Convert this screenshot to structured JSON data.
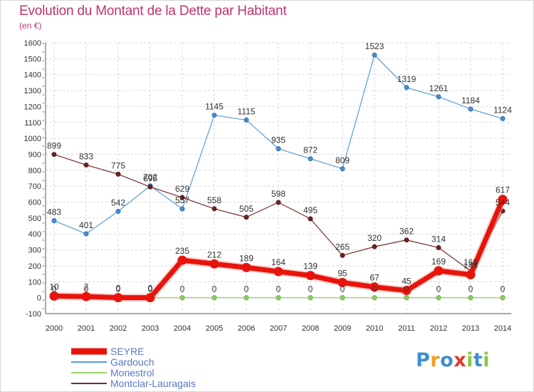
{
  "title": "Evolution du Montant de la Dette par Habitant",
  "subtitle": "(en €)",
  "logo": [
    "P",
    "r",
    "o",
    "x",
    "i",
    "t",
    "i"
  ],
  "logo_colors": [
    "#3f8fd2",
    "#f29c1f",
    "#3f8fd2",
    "#e5392f",
    "#8cc63f",
    "#3f8fd2",
    "#8cc63f"
  ],
  "chart_data": {
    "type": "line",
    "title": "Evolution du Montant de la Dette par Habitant",
    "xlabel": "",
    "ylabel": "(en €)",
    "x": [
      2000,
      2001,
      2002,
      2003,
      2004,
      2005,
      2006,
      2007,
      2008,
      2009,
      2010,
      2011,
      2012,
      2013,
      2014
    ],
    "ylim": [
      -100,
      1600
    ],
    "yticks": [
      -100,
      0,
      100,
      200,
      300,
      400,
      500,
      600,
      700,
      800,
      900,
      1000,
      1100,
      1200,
      1300,
      1400,
      1500,
      1600
    ],
    "grid": true,
    "legend": "bottom-left",
    "series": [
      {
        "name": "SEYRE",
        "color": "#e8140c",
        "values": [
          10,
          7,
          0,
          0,
          235,
          212,
          189,
          164,
          139,
          95,
          67,
          45,
          169,
          144,
          617
        ]
      },
      {
        "name": "Gardouch",
        "color": "#5e9cd3",
        "values": [
          483,
          401,
          542,
          702,
          557,
          1145,
          1115,
          935,
          872,
          809,
          1523,
          1319,
          1261,
          1184,
          1124
        ]
      },
      {
        "name": "Monestrol",
        "color": "#9ad46a",
        "values": [
          0,
          0,
          0,
          0,
          0,
          0,
          0,
          0,
          0,
          0,
          0,
          0,
          0,
          0,
          0
        ]
      },
      {
        "name": "Montclar-Lauragais",
        "color": "#7a2a2a",
        "values": [
          899,
          833,
          775,
          695,
          629,
          558,
          505,
          598,
          495,
          265,
          320,
          362,
          314,
          168,
          544
        ]
      }
    ],
    "data_labels": [
      {
        "series": "SEYRE",
        "labels": [
          "10",
          "7",
          "0",
          "0",
          "235",
          "212",
          "189",
          "164",
          "139",
          "95",
          "67",
          "45",
          "169",
          "144",
          "617"
        ]
      },
      {
        "series": "Gardouch",
        "labels": [
          "483",
          "401",
          "542",
          "702",
          "557",
          "1145",
          "1115",
          "935",
          "872",
          "809",
          "1523",
          "1319",
          "1261",
          "1184",
          "1124"
        ]
      },
      {
        "series": "Monestrol",
        "labels": [
          "0",
          "0",
          "0",
          "0",
          "0",
          "0",
          "0",
          "0",
          "0",
          "0",
          "0",
          "0",
          "0",
          "0",
          "0"
        ]
      },
      {
        "series": "Montclar-Lauragais",
        "labels": [
          "899",
          "833",
          "775",
          "695",
          "629",
          "558",
          "505",
          "598",
          "495",
          "265",
          "320",
          "362",
          "314",
          "168",
          "544"
        ]
      }
    ]
  }
}
